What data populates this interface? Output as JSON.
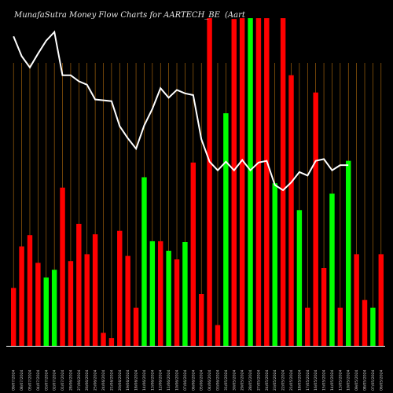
{
  "chart_data": {
    "type": "bar",
    "title": "MunafaSutra  Money Flow  Charts for AARTECH_BE",
    "subtitle": "(Aart",
    "categories": [
      "09/07/2024",
      "08/07/2024",
      "05/07/2024",
      "04/07/2024",
      "03/07/2024",
      "02/07/2024",
      "01/07/2024",
      "28/06/2024",
      "27/06/2024",
      "26/06/2024",
      "25/06/2024",
      "24/06/2024",
      "21/06/2024",
      "20/06/2024",
      "19/06/2024",
      "18/06/2024",
      "14/06/2024",
      "13/06/2024",
      "12/06/2024",
      "11/06/2024",
      "10/06/2024",
      "07/06/2024",
      "06/06/2024",
      "05/06/2024",
      "04/06/2024",
      "03/06/2024",
      "31/05/2024",
      "30/05/2024",
      "29/05/2024",
      "28/05/2024",
      "27/05/2024",
      "24/05/2024",
      "23/05/2024",
      "22/05/2024",
      "21/05/2024",
      "18/05/2024",
      "17/05/2024",
      "16/05/2024",
      "15/05/2024",
      "14/05/2024",
      "13/05/2024",
      "10/05/2024",
      "09/05/2024",
      "08/05/2024",
      "07/05/2024",
      "06/05/2024"
    ],
    "bar_colors": [
      "red",
      "red",
      "red",
      "red",
      "green",
      "green",
      "red",
      "red",
      "red",
      "red",
      "red",
      "red",
      "red",
      "red",
      "red",
      "red",
      "green",
      "green",
      "red",
      "green",
      "red",
      "green",
      "red",
      "red",
      "red",
      "red",
      "green",
      "red",
      "red",
      "green",
      "red",
      "red",
      "green",
      "red",
      "red",
      "green",
      "red",
      "red",
      "red",
      "green",
      "red",
      "green",
      "red",
      "red",
      "green",
      "red"
    ],
    "values": [
      67,
      115,
      128,
      96,
      79,
      88,
      183,
      98,
      141,
      106,
      129,
      15,
      9,
      133,
      104,
      44,
      195,
      121,
      121,
      110,
      100,
      120,
      212,
      60,
      379,
      24,
      269,
      378,
      379,
      379,
      379,
      379,
      188,
      379,
      313,
      157,
      44,
      293,
      90,
      176,
      44,
      214,
      106,
      53,
      44,
      106
    ],
    "line": [
      358,
      335,
      322,
      338,
      353,
      363,
      313,
      313,
      306,
      302,
      285,
      284,
      283,
      254,
      240,
      228,
      255,
      274,
      298,
      287,
      296,
      292,
      290,
      239,
      213,
      203,
      213,
      203,
      215,
      203,
      212,
      214,
      186,
      180,
      189,
      201,
      197,
      214,
      216,
      203,
      209,
      209
    ],
    "ylim": [
      0,
      400
    ],
    "line_ylim": [
      0,
      400
    ],
    "grid": "vertical",
    "colors": {
      "red": "#ff0000",
      "green": "#00ff00",
      "grid": "#b8700f",
      "line": "#ffffff",
      "axis": "#ffffff",
      "background": "#000000"
    }
  }
}
